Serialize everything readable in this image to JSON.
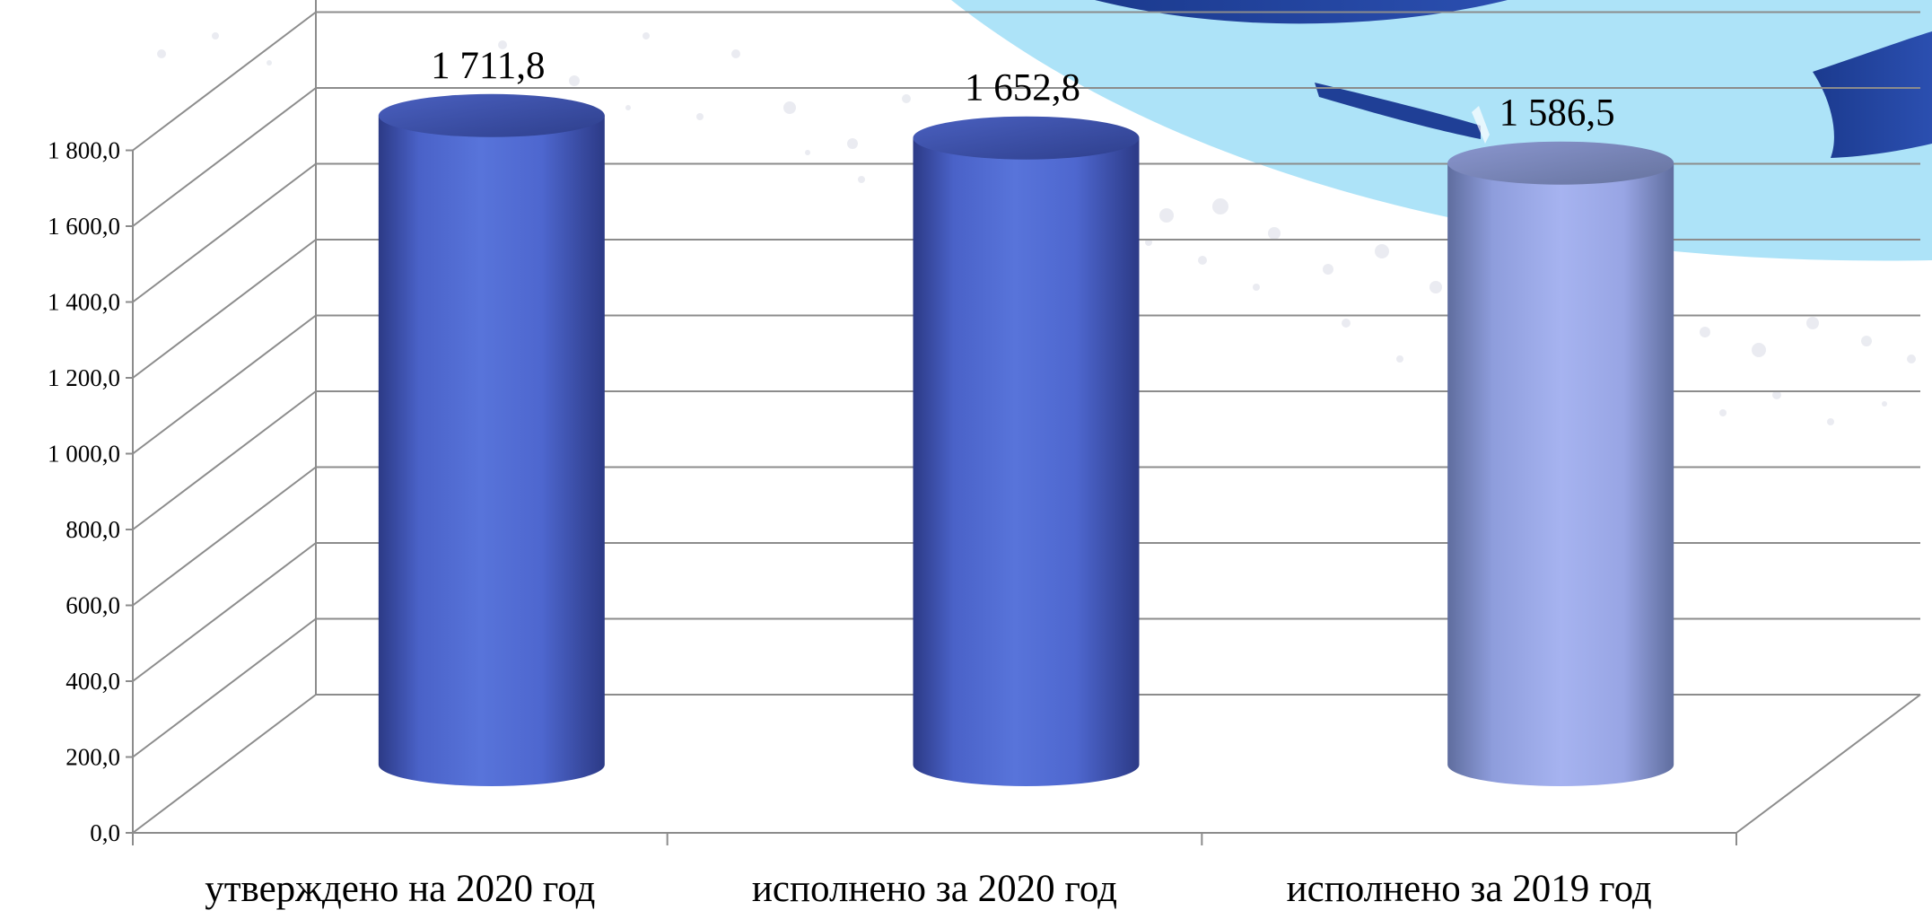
{
  "chart_data": {
    "type": "bar",
    "categories": [
      "утверждено на 2020 год",
      "исполнено за 2020 год",
      "исполнено за 2019 год"
    ],
    "values": [
      1711.8,
      1652.8,
      1586.5
    ],
    "value_labels": [
      "1 711,8",
      "1 652,8",
      "1 586,5"
    ],
    "ylim": [
      0,
      1800
    ],
    "yticks": [
      "0,0",
      "200,0",
      "400,0",
      "600,0",
      "800,0",
      "1 000,0",
      "1 200,0",
      "1 400,0",
      "1 600,0",
      "1 800,0"
    ],
    "grid": true,
    "style": "3d-cylinder",
    "colors": {
      "main_bar": "#5570D6",
      "main_bar_dark": "#2C3A86",
      "highlight_bar": "#A3B0EE",
      "highlight_bar_dark": "#5F6D9E",
      "grid": "#8c8c8c",
      "background_swoosh": "#ADE3F8",
      "background_swoosh_dark": "#1F3F96"
    }
  }
}
